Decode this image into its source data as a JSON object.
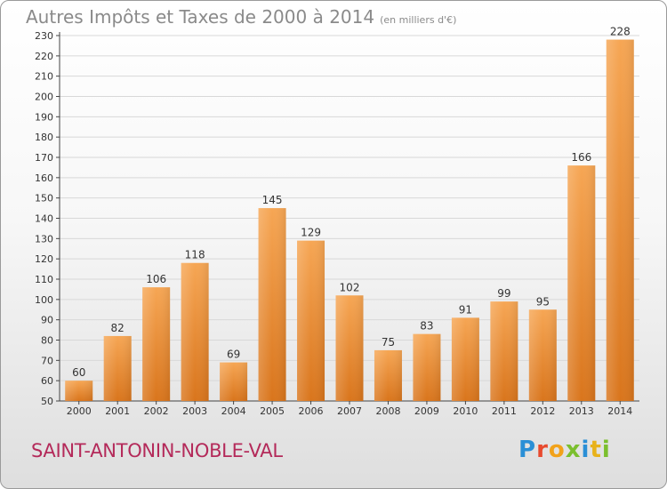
{
  "title": "Autres Impôts et Taxes de 2000 à 2014",
  "subtitle": "(en milliers d'€)",
  "commune": "SAINT-ANTONIN-NOBLE-VAL",
  "logo_text": "Proxiti",
  "colors": {
    "bar_top": "#f6a654",
    "bar_bottom": "#d9751c",
    "title": "#8a8a8a",
    "commune": "#b42a5a",
    "grid": "#d8d8d8"
  },
  "chart_data": {
    "type": "bar",
    "categories": [
      "2000",
      "2001",
      "2002",
      "2003",
      "2004",
      "2005",
      "2006",
      "2007",
      "2008",
      "2009",
      "2010",
      "2011",
      "2012",
      "2013",
      "2014"
    ],
    "values": [
      60,
      82,
      106,
      118,
      69,
      145,
      129,
      102,
      75,
      83,
      91,
      99,
      95,
      166,
      228
    ],
    "ylim": [
      50,
      230
    ],
    "yticks": [
      50,
      60,
      70,
      80,
      90,
      100,
      110,
      120,
      130,
      140,
      150,
      160,
      170,
      180,
      190,
      200,
      210,
      220,
      230
    ],
    "grid": true,
    "title": "Autres Impôts et Taxes de 2000 à 2014",
    "xlabel": "",
    "ylabel": ""
  }
}
